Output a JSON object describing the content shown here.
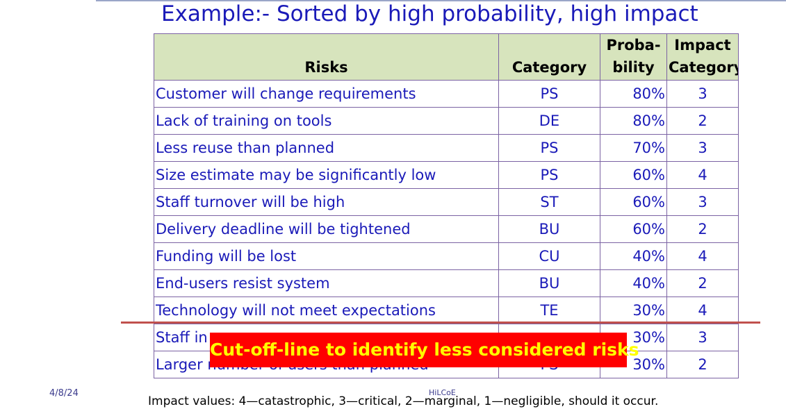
{
  "title": "Example:- Sorted by high probability, high impact",
  "table": {
    "headers": {
      "risks": "Risks",
      "category": "Category",
      "probability_line1": "Proba-",
      "probability_line2": "bility",
      "impact_line1": "Impact",
      "impact_line2": "Category"
    },
    "rows": [
      {
        "risk": "Customer will change requirements",
        "category": "PS",
        "probability": "80%",
        "impact": "3"
      },
      {
        "risk": "Lack of training on tools",
        "category": "DE",
        "probability": "80%",
        "impact": "2"
      },
      {
        "risk": "Less reuse than planned",
        "category": "PS",
        "probability": "70%",
        "impact": "3"
      },
      {
        "risk": "Size estimate may be significantly low",
        "category": "PS",
        "probability": "60%",
        "impact": "4"
      },
      {
        "risk": "Staff turnover will be high",
        "category": "ST",
        "probability": "60%",
        "impact": "3"
      },
      {
        "risk": "Delivery deadline will be tightened",
        "category": "BU",
        "probability": "60%",
        "impact": "2"
      },
      {
        "risk": "Funding will be lost",
        "category": "CU",
        "probability": "40%",
        "impact": "4"
      },
      {
        "risk": "End-users resist system",
        "category": "BU",
        "probability": "40%",
        "impact": "2"
      },
      {
        "risk": "Technology will not meet expectations",
        "category": "TE",
        "probability": "30%",
        "impact": "4"
      },
      {
        "risk": "Staff in",
        "category": "",
        "probability": "30%",
        "impact": "3"
      },
      {
        "risk": "Larger number of users than planned",
        "category": "PS",
        "probability": "30%",
        "impact": "2"
      }
    ]
  },
  "cutoff_label": "Cut-off-line to identify less considered risks",
  "footer": {
    "date": "4/8/24",
    "org": "HiLCoE",
    "note": "Impact values: 4—catastrophic, 3—critical, 2—marginal, 1—negligible, should it occur."
  },
  "colors": {
    "title_text": "#1a1ab8",
    "header_bg": "#d7e4bd",
    "cutoff_bg": "#ff0000",
    "cutoff_text": "#ffff00",
    "cutoff_line": "#c0504d"
  }
}
